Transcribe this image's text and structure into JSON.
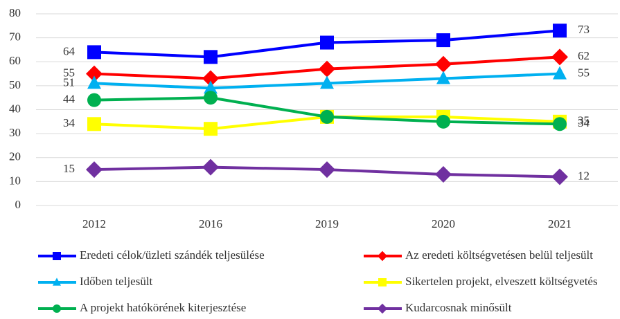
{
  "chart_data": {
    "type": "line",
    "categories": [
      "2012",
      "2016",
      "2019",
      "2020",
      "2021"
    ],
    "ylim": [
      0,
      80
    ],
    "yticks": [
      0,
      10,
      20,
      30,
      40,
      50,
      60,
      70,
      80
    ],
    "grid": true,
    "legend": "bottom",
    "series": [
      {
        "name": "Eredeti célok/üzleti szándék teljesülése",
        "color": "#0000ff",
        "marker": "square",
        "values": [
          64,
          62,
          68,
          69,
          73
        ]
      },
      {
        "name": "Az eredeti költségvetésen belül teljesült",
        "color": "#ff0000",
        "marker": "diamond",
        "values": [
          55,
          53,
          57,
          59,
          62
        ]
      },
      {
        "name": "Időben teljesült",
        "color": "#00b0f0",
        "marker": "triangle",
        "values": [
          51,
          49,
          51,
          53,
          55
        ]
      },
      {
        "name": "Sikertelen projekt, elveszett költségvetés",
        "color": "#ffff00",
        "marker": "square",
        "values": [
          34,
          32,
          37,
          37,
          35
        ]
      },
      {
        "name": "A projekt hatókörének kiterjesztése",
        "color": "#00b050",
        "marker": "circle",
        "values": [
          44,
          45,
          37,
          35,
          34
        ]
      },
      {
        "name": "Kudarcosnak minősült",
        "color": "#7030a0",
        "marker": "diamond",
        "values": [
          15,
          16,
          15,
          13,
          12
        ]
      }
    ]
  }
}
